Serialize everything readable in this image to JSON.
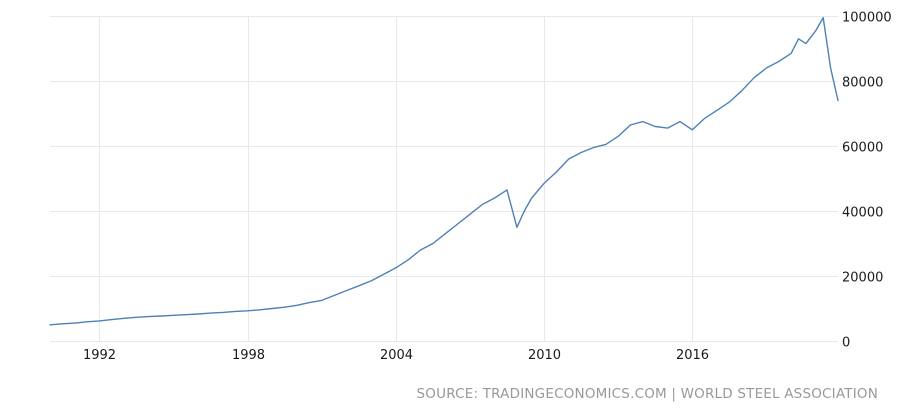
{
  "chart_data": {
    "type": "line",
    "title": "",
    "xlabel": "",
    "ylabel": "",
    "grid": true,
    "legend": "none",
    "line_color": "#4e81b8",
    "grid_color": "#e8e8e8",
    "x_tick_labels": [
      "1992",
      "1998",
      "2004",
      "2010",
      "2016"
    ],
    "y_tick_labels": [
      "0",
      "20000",
      "40000",
      "60000",
      "80000",
      "100000"
    ],
    "xlim": [
      1990,
      2021.9
    ],
    "ylim": [
      0,
      100000
    ],
    "series": [
      {
        "x": [
          1990.0,
          1990.5,
          1991.0,
          1991.5,
          1992.0,
          1992.5,
          1993.0,
          1993.5,
          1994.0,
          1994.5,
          1995.0,
          1995.5,
          1996.0,
          1996.5,
          1997.0,
          1997.5,
          1998.0,
          1998.5,
          1999.0,
          1999.5,
          2000.0,
          2000.5,
          2001.0,
          2001.5,
          2002.0,
          2002.5,
          2003.0,
          2003.5,
          2004.0,
          2004.5,
          2005.0,
          2005.5,
          2006.0,
          2006.5,
          2007.0,
          2007.5,
          2008.0,
          2008.5,
          2008.9,
          2009.2,
          2009.5,
          2010.0,
          2010.5,
          2011.0,
          2011.5,
          2012.0,
          2012.5,
          2013.0,
          2013.5,
          2014.0,
          2014.5,
          2015.0,
          2015.5,
          2016.0,
          2016.5,
          2017.0,
          2017.5,
          2018.0,
          2018.5,
          2019.0,
          2019.5,
          2020.0,
          2020.3,
          2020.6,
          2021.0,
          2021.3,
          2021.6,
          2021.9
        ],
        "values": [
          5000,
          5300,
          5500,
          5900,
          6200,
          6600,
          7000,
          7300,
          7500,
          7700,
          7900,
          8100,
          8300,
          8600,
          8800,
          9100,
          9300,
          9600,
          10000,
          10400,
          11000,
          11800,
          12500,
          14000,
          15500,
          17000,
          18500,
          20500,
          22500,
          25000,
          28000,
          30000,
          33000,
          36000,
          39000,
          42000,
          44000,
          46500,
          35000,
          40000,
          44000,
          48500,
          52000,
          56000,
          58000,
          59500,
          60500,
          63000,
          66500,
          67500,
          66000,
          65500,
          67500,
          65000,
          68500,
          71000,
          73500,
          77000,
          81000,
          84000,
          86000,
          88500,
          93000,
          91500,
          95500,
          99500,
          84000,
          74000
        ]
      }
    ]
  },
  "source": {
    "text": "SOURCE: TRADINGECONOMICS.COM | WORLD STEEL ASSOCIATION"
  }
}
